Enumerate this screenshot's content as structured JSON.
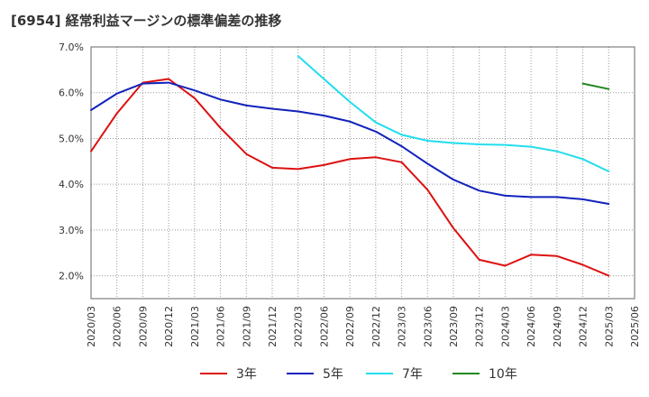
{
  "chart_data": {
    "type": "line",
    "title": "[6954]  経常利益マージンの標準偏差の推移",
    "x": [
      "2020/03",
      "2020/06",
      "2020/09",
      "2020/12",
      "2021/03",
      "2021/06",
      "2021/09",
      "2021/12",
      "2022/03",
      "2022/06",
      "2022/09",
      "2022/12",
      "2023/03",
      "2023/06",
      "2023/09",
      "2023/12",
      "2024/03",
      "2024/06",
      "2024/09",
      "2024/12",
      "2025/03",
      "2025/06"
    ],
    "y_ticks": [
      "2.0%",
      "3.0%",
      "4.0%",
      "5.0%",
      "6.0%",
      "7.0%"
    ],
    "ylim": [
      1.5,
      7.0
    ],
    "grid": true,
    "legend_position": "bottom",
    "series": [
      {
        "name": "3年",
        "color": "#dd1111",
        "values": [
          4.72,
          5.55,
          6.22,
          6.3,
          5.88,
          5.23,
          4.66,
          4.36,
          4.33,
          4.42,
          4.55,
          4.59,
          4.48,
          3.88,
          3.04,
          2.35,
          2.22,
          2.46,
          2.43,
          2.24,
          2.0,
          null
        ]
      },
      {
        "name": "5年",
        "color": "#1122bb",
        "values": [
          5.62,
          5.98,
          6.2,
          6.22,
          6.05,
          5.85,
          5.72,
          5.65,
          5.59,
          5.5,
          5.37,
          5.15,
          4.83,
          4.45,
          4.1,
          3.86,
          3.75,
          3.72,
          3.72,
          3.67,
          3.57,
          null
        ]
      },
      {
        "name": "7年",
        "color": "#22ddee",
        "values": [
          null,
          null,
          null,
          null,
          null,
          null,
          null,
          null,
          6.8,
          6.3,
          5.8,
          5.35,
          5.08,
          4.95,
          4.9,
          4.87,
          4.86,
          4.82,
          4.72,
          4.55,
          4.28,
          null
        ]
      },
      {
        "name": "10年",
        "color": "#228822",
        "values": [
          null,
          null,
          null,
          null,
          null,
          null,
          null,
          null,
          null,
          null,
          null,
          null,
          null,
          null,
          null,
          null,
          null,
          null,
          null,
          6.2,
          6.08,
          null
        ]
      }
    ]
  }
}
